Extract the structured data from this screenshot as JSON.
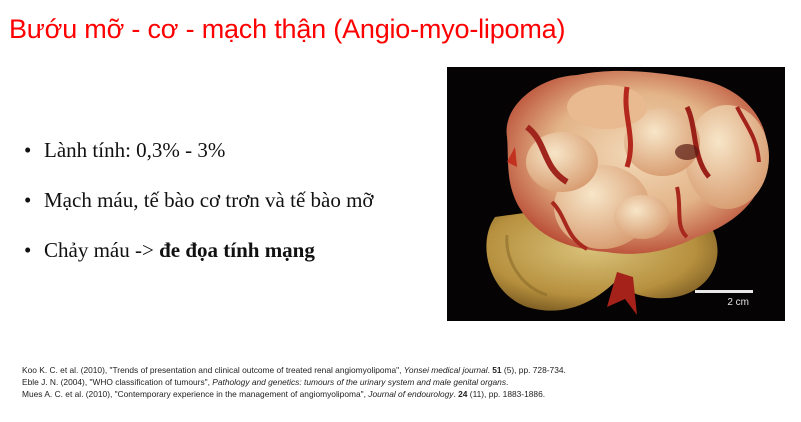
{
  "slide": {
    "title": "Bướu mỡ - cơ - mạch thận (Angio-myo-lipoma)",
    "bullets": [
      {
        "text": "Lành tính: 0,3% - 3%",
        "bold": ""
      },
      {
        "text": "Mạch máu, tế bào cơ trơn và tế bào mỡ",
        "bold": ""
      },
      {
        "text": "Chảy máu -> ",
        "bold": "đe đọa tính mạng"
      }
    ],
    "bullet_glyph": "•",
    "image": {
      "scale_label": "2 cm"
    },
    "references": [
      {
        "pre": "Koo K. C. et al. (2010), \"Trends of presentation and clinical outcome of treated renal angiomyolipoma\", ",
        "journal": "Yonsei medical journal",
        "sep": ". ",
        "volume": "51",
        "post": " (5), pp. 728-734."
      },
      {
        "pre": "Eble J. N. (2004), \"WHO classification of tumours\", ",
        "journal": "Pathology and genetics: tumours of the urinary system and male genital organs",
        "sep": ".",
        "volume": "",
        "post": ""
      },
      {
        "pre": "Mues A. C. et al. (2010), \"Contemporary experience in the management of angiomyolipoma\", ",
        "journal": "Journal of endourology",
        "sep": ". ",
        "volume": "24",
        "post": " (11), pp. 1883-1886."
      }
    ]
  }
}
